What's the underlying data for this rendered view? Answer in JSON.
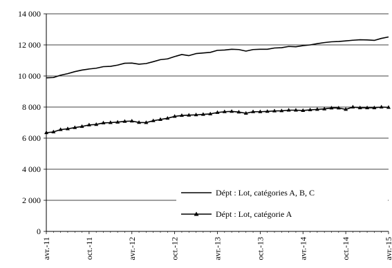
{
  "chart_data": {
    "type": "line",
    "title": "",
    "xlabel": "",
    "ylabel": "",
    "ylim": [
      0,
      14000
    ],
    "yticks": [
      "0",
      "2 000",
      "4 000",
      "6 000",
      "8 000",
      "10 000",
      "12 000",
      "14 000"
    ],
    "ytick_values": [
      0,
      2000,
      4000,
      6000,
      8000,
      10000,
      12000,
      14000
    ],
    "xtick_labels": [
      "avr.-11",
      "oct.-11",
      "avr.-12",
      "oct.-12",
      "avr.-13",
      "oct.-13",
      "avr.-14",
      "oct.-14",
      "avr.-15"
    ],
    "grid": "horizontal",
    "legend_position": "bottom-right inside plot",
    "x_start": "2011-04",
    "x_end": "2015-04",
    "x_frequency": "monthly",
    "series": [
      {
        "name": "Dépt : Lot, catégories A, B, C",
        "marker": "none",
        "color": "#000000",
        "values": [
          9880,
          9900,
          10050,
          10150,
          10280,
          10380,
          10450,
          10500,
          10600,
          10620,
          10700,
          10820,
          10830,
          10760,
          10800,
          10920,
          11050,
          11100,
          11250,
          11380,
          11310,
          11440,
          11480,
          11520,
          11650,
          11670,
          11720,
          11700,
          11600,
          11700,
          11720,
          11720,
          11800,
          11820,
          11900,
          11880,
          11950,
          12000,
          12080,
          12150,
          12200,
          12220,
          12260,
          12300,
          12330,
          12320,
          12290,
          12420,
          12510
        ]
      },
      {
        "name": "Dépt : Lot, catégorie A",
        "marker": "triangle",
        "color": "#000000",
        "values": [
          6350,
          6400,
          6550,
          6600,
          6680,
          6750,
          6850,
          6880,
          6980,
          7000,
          7030,
          7080,
          7100,
          7010,
          7000,
          7120,
          7200,
          7280,
          7400,
          7460,
          7480,
          7500,
          7530,
          7560,
          7650,
          7700,
          7720,
          7680,
          7600,
          7700,
          7700,
          7720,
          7750,
          7760,
          7800,
          7800,
          7780,
          7820,
          7850,
          7880,
          7940,
          7940,
          7850,
          8000,
          7950,
          7950,
          7950,
          8000,
          7980
        ]
      }
    ]
  }
}
